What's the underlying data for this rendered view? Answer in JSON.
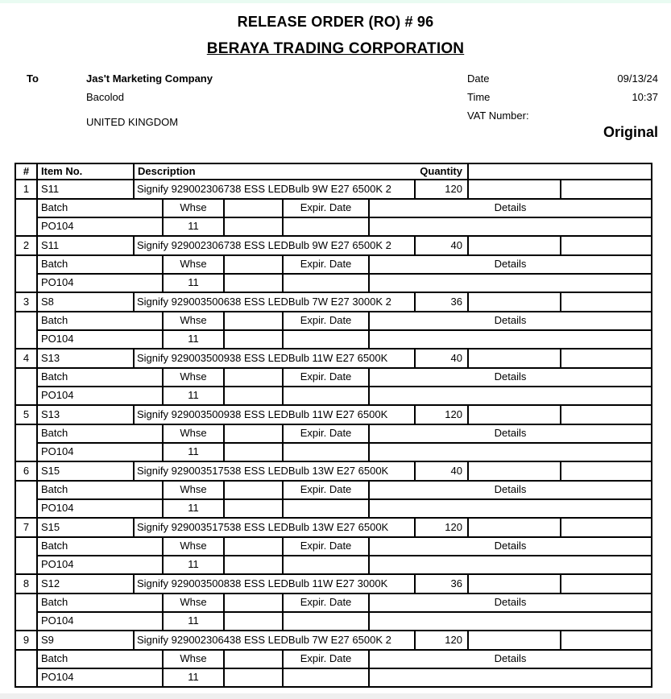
{
  "page": {
    "title": "RELEASE ORDER (RO) # 96",
    "company": "BERAYA TRADING CORPORATION",
    "copy_label": "Original"
  },
  "recipient": {
    "label": "To",
    "name": "Jas't Marketing Company",
    "city": "Bacolod",
    "country": "UNITED KINGDOM"
  },
  "meta": {
    "date_label": "Date",
    "date_value": "09/13/24",
    "time_label": "Time",
    "time_value": "10:37",
    "vat_label": "VAT Number:",
    "vat_value": ""
  },
  "table": {
    "headers": {
      "num": "#",
      "item_no": "Item No.",
      "description": "Description",
      "quantity": "Quantity"
    },
    "sub_headers": {
      "batch": "Batch",
      "whse": "Whse",
      "expir_date": "Expir. Date",
      "details": "Details"
    },
    "rows": [
      {
        "num": "1",
        "item_no": "S11",
        "description": "Signify 929002306738 ESS LEDBulb 9W E27 6500K 2",
        "quantity": "120",
        "batch": "PO104",
        "whse": "11",
        "expir_date": "",
        "details": ""
      },
      {
        "num": "2",
        "item_no": "S11",
        "description": "Signify 929002306738 ESS LEDBulb 9W E27 6500K 2",
        "quantity": "40",
        "batch": "PO104",
        "whse": "11",
        "expir_date": "",
        "details": ""
      },
      {
        "num": "3",
        "item_no": "S8",
        "description": "Signify 929003500638 ESS LEDBulb 7W E27 3000K 2",
        "quantity": "36",
        "batch": "PO104",
        "whse": "11",
        "expir_date": "",
        "details": ""
      },
      {
        "num": "4",
        "item_no": "S13",
        "description": "Signify 929003500938 ESS LEDBulb 11W E27 6500K",
        "quantity": "40",
        "batch": "PO104",
        "whse": "11",
        "expir_date": "",
        "details": ""
      },
      {
        "num": "5",
        "item_no": "S13",
        "description": "Signify 929003500938 ESS LEDBulb 11W E27 6500K",
        "quantity": "120",
        "batch": "PO104",
        "whse": "11",
        "expir_date": "",
        "details": ""
      },
      {
        "num": "6",
        "item_no": "S15",
        "description": "Signify 929003517538 ESS LEDBulb 13W E27 6500K",
        "quantity": "40",
        "batch": "PO104",
        "whse": "11",
        "expir_date": "",
        "details": ""
      },
      {
        "num": "7",
        "item_no": "S15",
        "description": "Signify 929003517538 ESS LEDBulb 13W E27 6500K",
        "quantity": "120",
        "batch": "PO104",
        "whse": "11",
        "expir_date": "",
        "details": ""
      },
      {
        "num": "8",
        "item_no": "S12",
        "description": "Signify 929003500838 ESS LEDBulb 11W E27 3000K",
        "quantity": "36",
        "batch": "PO104",
        "whse": "11",
        "expir_date": "",
        "details": ""
      },
      {
        "num": "9",
        "item_no": "S9",
        "description": "Signify 929002306438 ESS LEDBulb 7W E27 6500K 2",
        "quantity": "120",
        "batch": "PO104",
        "whse": "11",
        "expir_date": "",
        "details": ""
      }
    ]
  },
  "colors": {
    "top_band": "#e9fbf2",
    "bottom_band": "#efefef",
    "border": "#000000"
  }
}
